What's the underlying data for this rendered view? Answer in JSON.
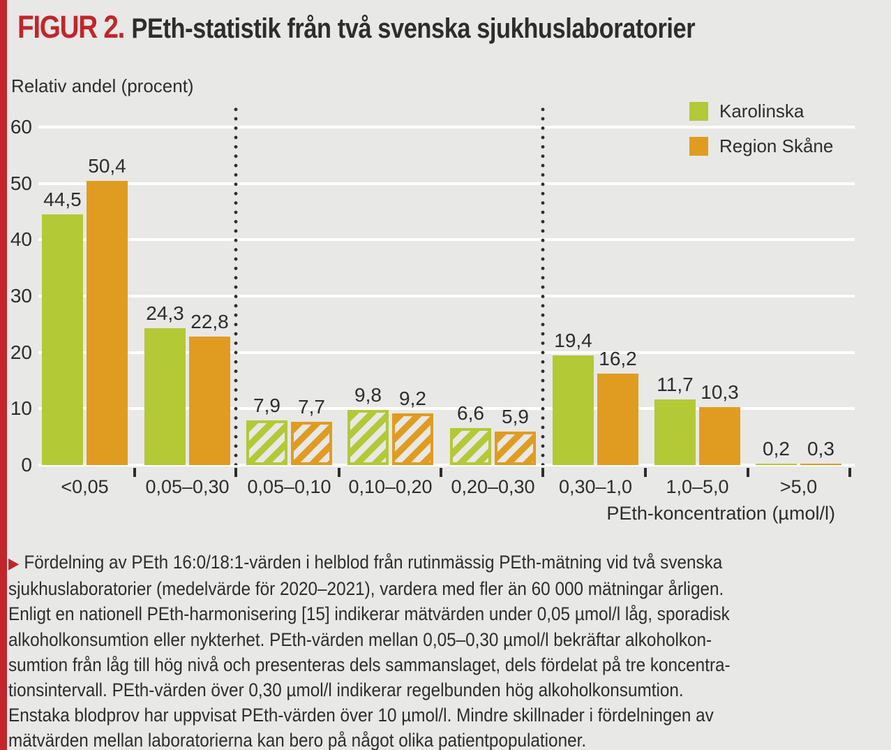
{
  "figure": {
    "label": "FIGUR 2.",
    "title": "PEth-statistik från två svenska sjukhuslaboratorier"
  },
  "chart_data": {
    "type": "bar",
    "title": "PEth-statistik från två svenska sjukhuslaboratorier",
    "ylabel": "Relativ andel (procent)",
    "xlabel": "PEth-koncentration (µmol/l)",
    "ylim": [
      0,
      60
    ],
    "yticks": [
      0,
      10,
      20,
      30,
      40,
      50,
      60
    ],
    "grid": "horizontal white gridlines on gray background",
    "legend_position": "top-right",
    "categories": [
      "<0,05",
      "0,05–0,30",
      "0,05–0,10",
      "0,10–0,20",
      "0,20–0,30",
      "0,30–1,0",
      "1,0–5,0",
      ">5,0"
    ],
    "hatched_categories": [
      false,
      false,
      true,
      true,
      true,
      false,
      false,
      false
    ],
    "dotted_separators_between_category_indices": [
      [
        1,
        2
      ],
      [
        4,
        5
      ]
    ],
    "series": [
      {
        "name": "Karolinska",
        "color": "#b3c935",
        "values": [
          44.5,
          24.3,
          7.9,
          9.8,
          6.6,
          19.4,
          11.7,
          0.2
        ]
      },
      {
        "name": "Region Skåne",
        "color": "#e09c20",
        "values": [
          50.4,
          22.8,
          7.7,
          9.2,
          5.9,
          16.2,
          10.3,
          0.3
        ]
      }
    ],
    "value_labels": [
      [
        "44,5",
        "24,3",
        "7,9",
        "9,8",
        "6,6",
        "19,4",
        "11,7",
        "0,2"
      ],
      [
        "50,4",
        "22,8",
        "7,7",
        "9,2",
        "5,9",
        "16,2",
        "10,3",
        "0,3"
      ]
    ]
  },
  "caption": {
    "marker": "▶",
    "lines": [
      "Fördelning av PEth 16:0/18:1-värden i helblod från rutinmässig PEth-mätning vid två svenska",
      "sjukhuslaboratorier (medelvärde för 2020–2021), vardera med fler än 60 000 mätningar årligen.",
      "Enligt en nationell PEth-harmonisering [15] indikerar mätvärden under 0,05 µmol/l låg, sporadisk",
      "alkoholkonsumtion eller nykterhet. PEth-värden mellan 0,05–0,30 µmol/l bekräftar alkoholkon-",
      "sumtion från låg till hög nivå och presenteras dels sammanslaget, dels fördelat på tre koncentra-",
      "tionsintervall. PEth-värden över 0,30 µmol/l indikerar regelbunden hög alkoholkonsumtion.",
      "Enstaka blodprov har uppvisat PEth-värden över 10 µmol/l. Mindre skillnader i fördelningen av",
      "mätvärden mellan laboratorierna kan bero på något olika patientpopulationer."
    ]
  },
  "colors": {
    "background": "#e8e8e7",
    "accent_red": "#c0262c",
    "karolinska_green": "#b3c935",
    "skane_orange": "#e09c20",
    "text_dark": "#2d2d2d",
    "gridline_white": "#ffffff"
  }
}
